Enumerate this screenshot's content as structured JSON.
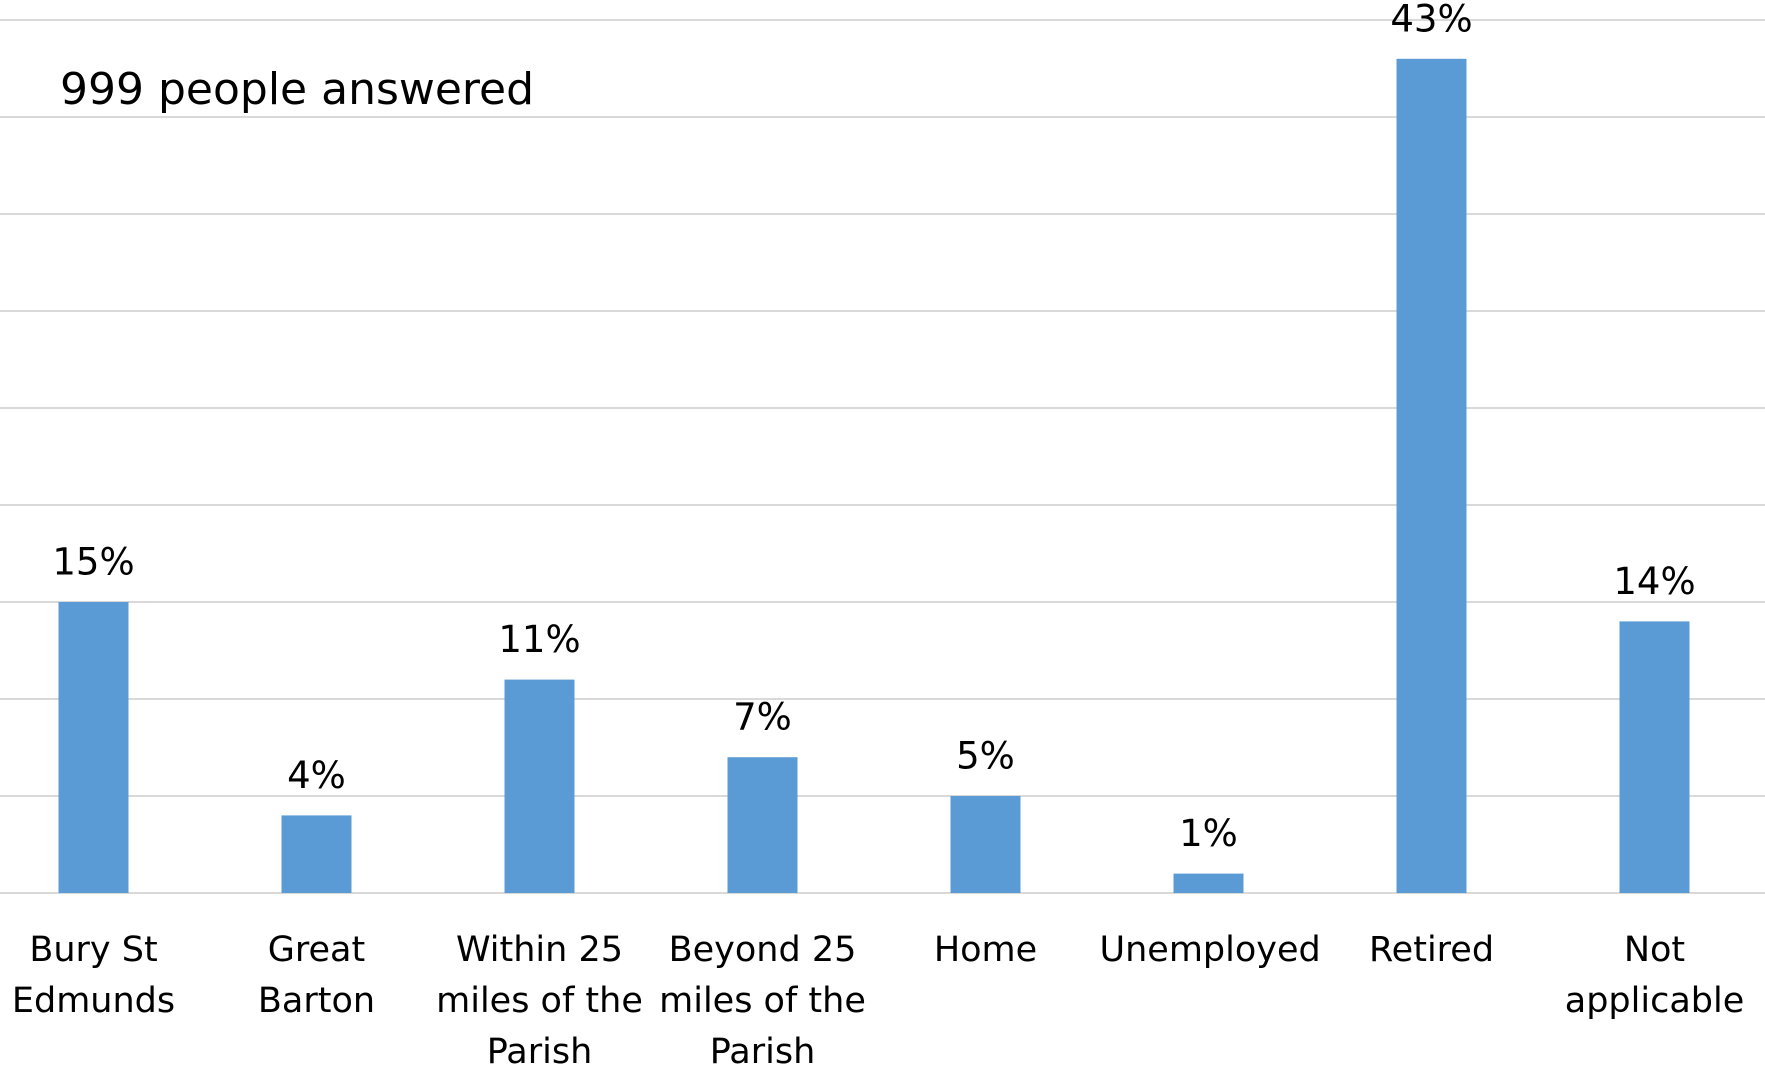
{
  "chart_data": {
    "type": "bar",
    "annotation": "999 people answered",
    "categories": [
      "Bury St Edmunds",
      "Great Barton",
      "Within 25 miles of the Parish",
      "Beyond 25 miles of the Parish",
      "Home",
      "Unemployed",
      "Retired",
      "Not applicable"
    ],
    "values": [
      15,
      4,
      11,
      7,
      5,
      1,
      43,
      14
    ],
    "value_labels": [
      "15%",
      "4%",
      "11%",
      "7%",
      "5%",
      "1%",
      "43%",
      "14%"
    ],
    "color": "#5b9bd5",
    "ylim": [
      0,
      45
    ],
    "yticks": [
      0,
      5,
      10,
      15,
      20,
      25,
      30,
      35,
      40,
      45
    ],
    "grid": true
  }
}
